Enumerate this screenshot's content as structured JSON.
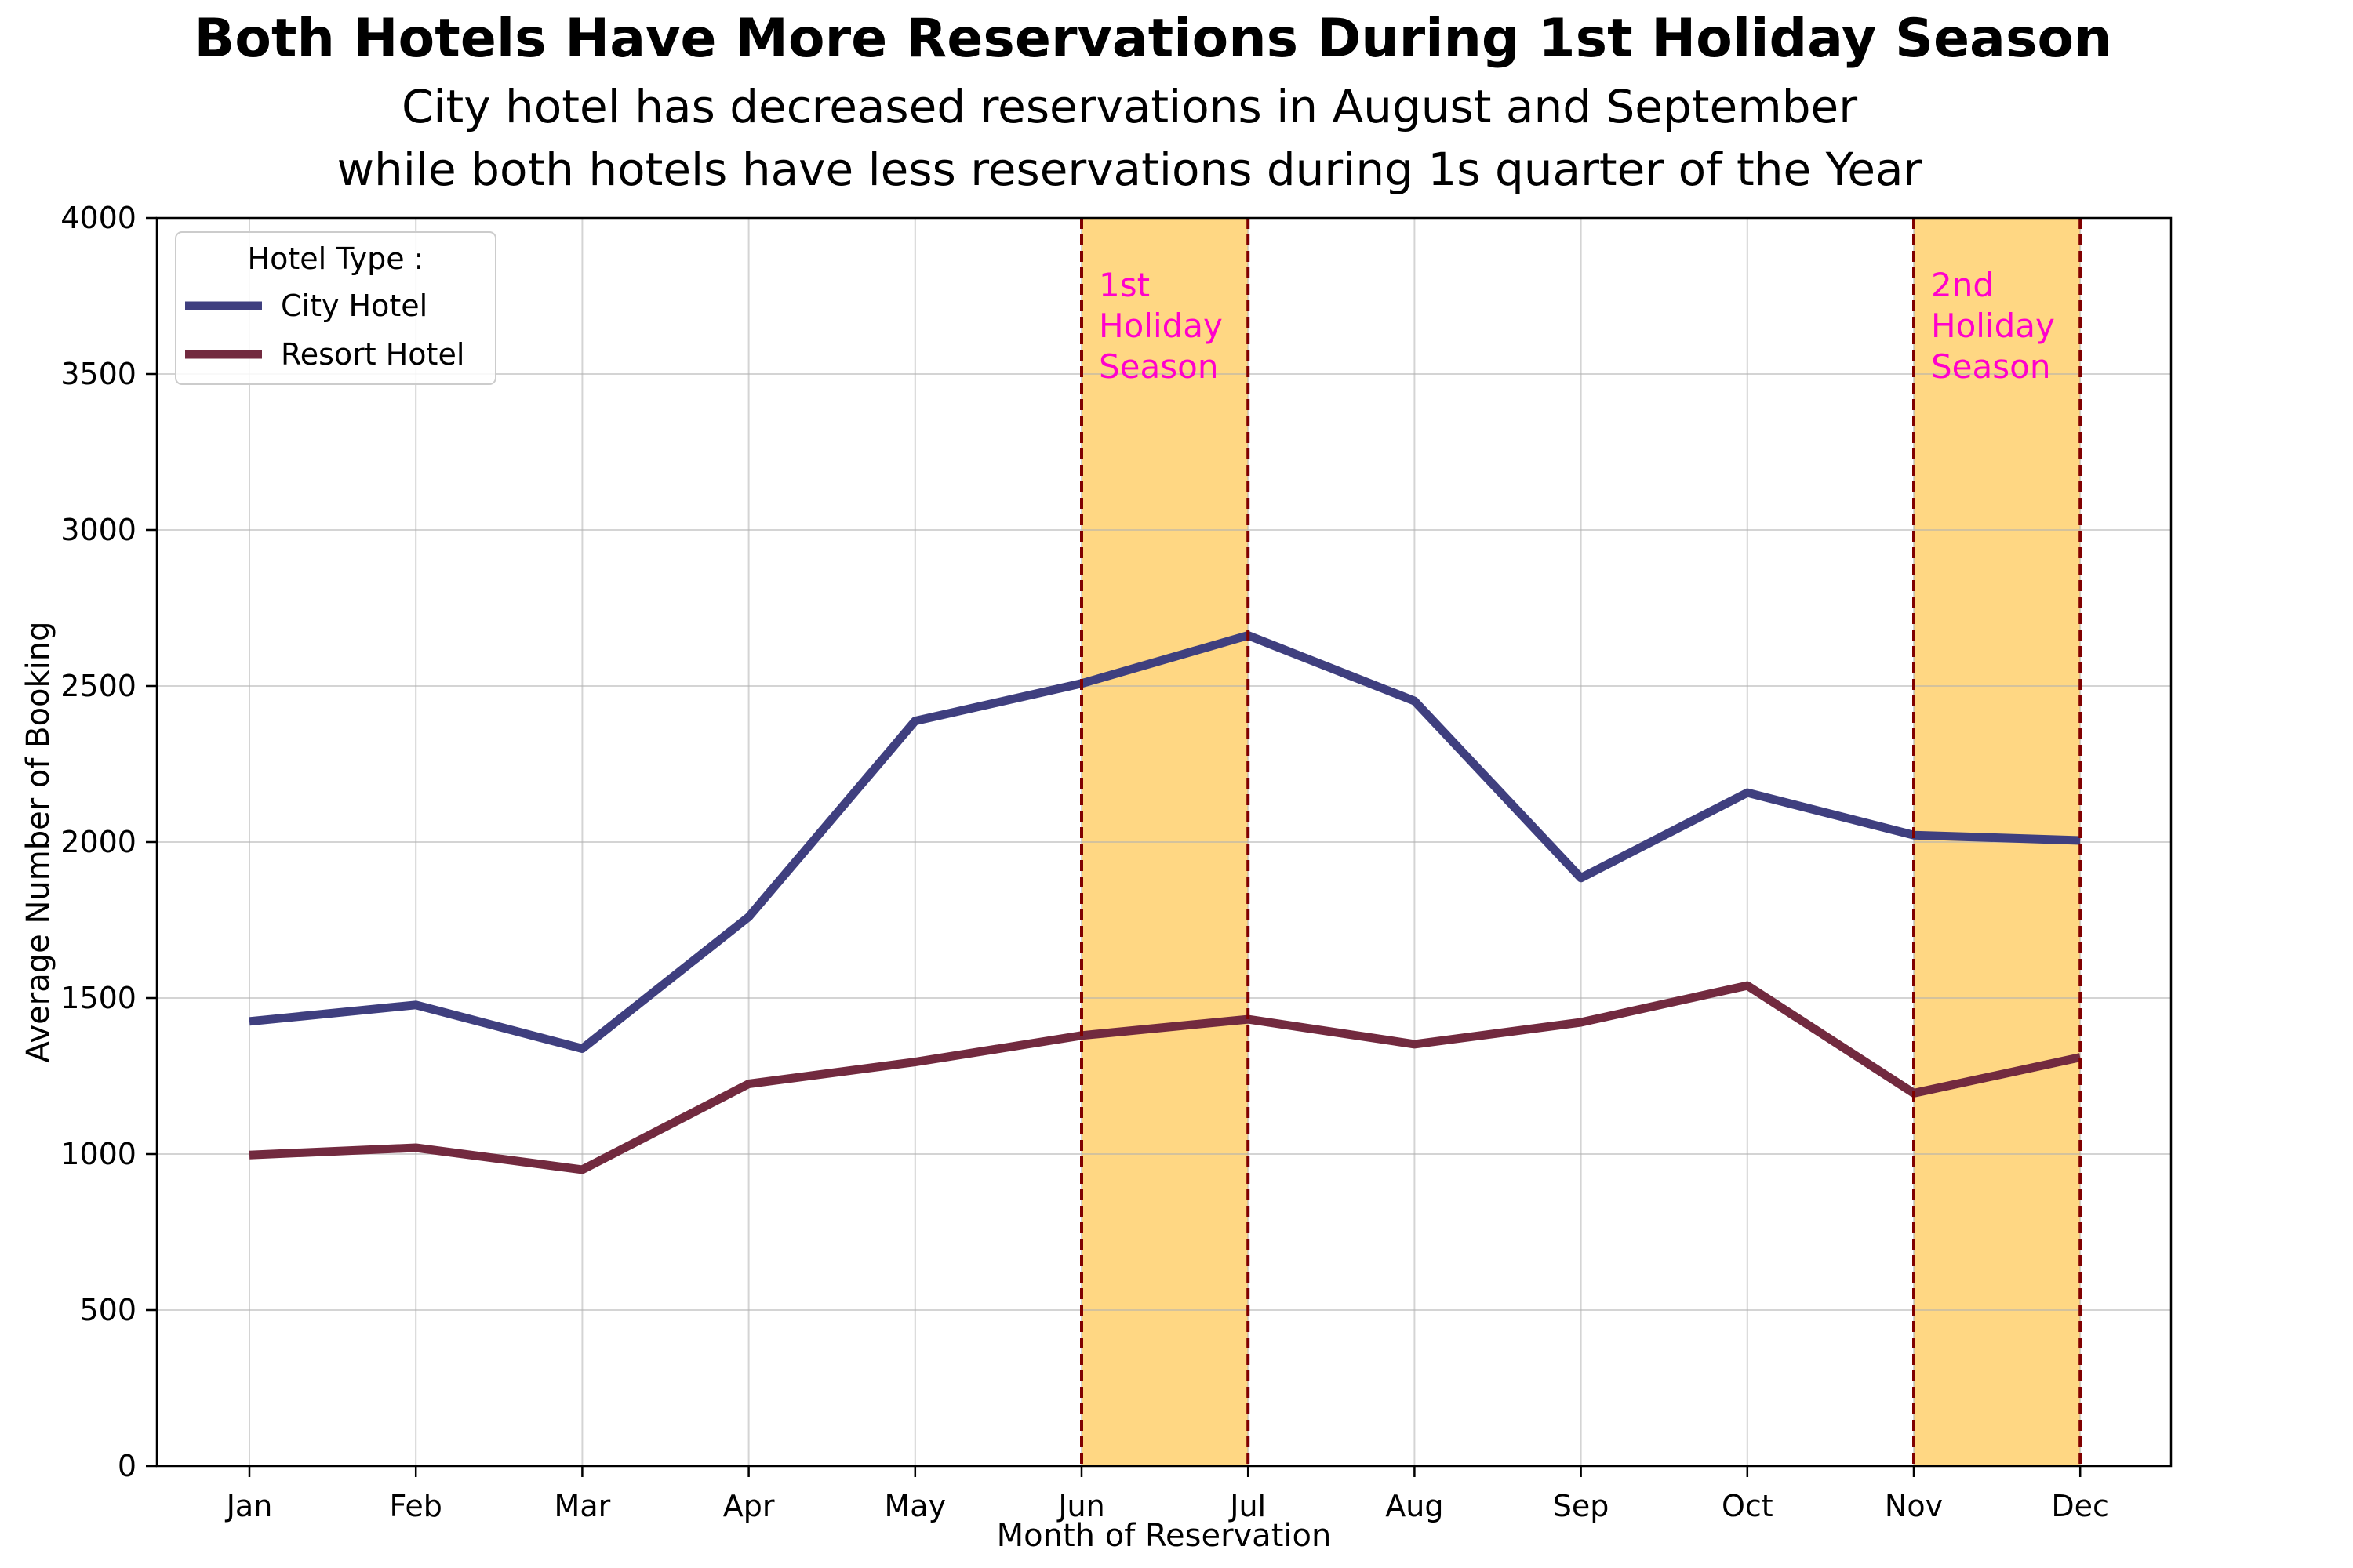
{
  "chart_data": {
    "type": "line",
    "title": "Both Hotels Have More Reservations During 1st Holiday Season",
    "subtitle_lines": [
      "City hotel has decreased reservations in August and September",
      "while both hotels have less reservations during 1s quarter of the Year"
    ],
    "xlabel": "Month of Reservation",
    "ylabel": "Average Number of Booking",
    "categories": [
      "Jan",
      "Feb",
      "Mar",
      "Apr",
      "May",
      "Jun",
      "Jul",
      "Aug",
      "Sep",
      "Oct",
      "Nov",
      "Dec"
    ],
    "ylim": [
      0,
      4000
    ],
    "yticks": [
      "0",
      "500",
      "1000",
      "1500",
      "2000",
      "2500",
      "3000",
      "3500",
      "4000"
    ],
    "grid": true,
    "legend": {
      "title": "Hotel Type :",
      "placement": "top-left"
    },
    "series": [
      {
        "name": "City Hotel",
        "color": "#3f3f7f",
        "values": [
          1425,
          1478,
          1338,
          1760,
          2388,
          2508,
          2662,
          2452,
          1885,
          2158,
          2022,
          2005
        ]
      },
      {
        "name": "Resort Hotel",
        "color": "#722a3f",
        "values": [
          997,
          1020,
          950,
          1225,
          1295,
          1380,
          1432,
          1352,
          1422,
          1540,
          1195,
          1310
        ]
      }
    ],
    "highlight_spans": [
      {
        "label_lines": [
          "1st",
          "Holiday",
          "Season"
        ],
        "start": "Jun",
        "end": "Jul",
        "fill": "#ffc64f",
        "line_color": "#800000",
        "label_color": "#ff00cc"
      },
      {
        "label_lines": [
          "2nd",
          "Holiday",
          "Season"
        ],
        "start": "Nov",
        "end": "Dec",
        "fill": "#ffc64f",
        "line_color": "#800000",
        "label_color": "#ff00cc"
      }
    ]
  }
}
